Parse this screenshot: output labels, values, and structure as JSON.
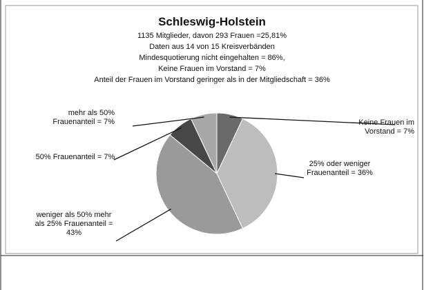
{
  "chart_data": {
    "type": "pie",
    "title": "Schleswig-Holstein",
    "subtitle": [
      "1135 Mitglieder, davon 293 Frauen =25,81%",
      "Daten aus  14 von 15  Kreisverbänden",
      "Mindesquotierung nicht eingehalten = 86%,",
      "Keine Frauen im Vorstand = 7%",
      "Anteil der Frauen im Vorstand geringer als in der Mitgliedschaft = 36%"
    ],
    "categories": [
      "Keine Frauen im Vorstand = 7%",
      "25% oder weniger Frauenanteil = 36%",
      "weniger als 50% mehr als 25% Frauenanteil = 43%",
      "50% Frauenanteil = 7%",
      "mehr als 50% Frauenanteil = 7%"
    ],
    "values": [
      7,
      36,
      43,
      7,
      7
    ],
    "colors": [
      "#6a6a6a",
      "#bdbdbd",
      "#9a9a9a",
      "#474747",
      "#a8a8a8"
    ]
  }
}
